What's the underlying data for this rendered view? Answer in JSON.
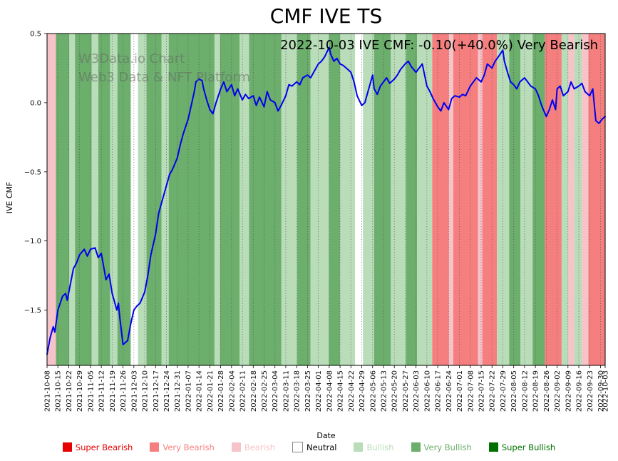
{
  "title": "CMF IVE TS",
  "annotation": "2022-10-03 IVE CMF: -0.10(+40.0%) Very Bearish",
  "watermark": {
    "line1": "W3Data.io Chart",
    "line2": "Web3 Data & NFT Platform"
  },
  "axes": {
    "x_label": "Date",
    "y_label": "IVE CMF"
  },
  "chart_data": {
    "type": "line",
    "title": "CMF IVE TS",
    "xlabel": "Date",
    "ylabel": "IVE CMF",
    "ylim": [
      -1.9,
      0.5
    ],
    "x_total_days": 360,
    "grid": "vertical-dotted",
    "legend_position": "bottom",
    "y_ticks": [
      0.5,
      0.0,
      -0.5,
      -1.0,
      -1.5
    ],
    "y_tick_labels": [
      "0.5",
      "0.0",
      "−0.5",
      "−1.0",
      "−1.5"
    ],
    "x_tick_labels": [
      "2021-10-08",
      "2021-10-15",
      "2021-10-22",
      "2021-10-29",
      "2021-11-05",
      "2021-11-12",
      "2021-11-19",
      "2021-11-26",
      "2021-12-03",
      "2021-12-10",
      "2021-12-17",
      "2021-12-24",
      "2021-12-31",
      "2022-01-07",
      "2022-01-14",
      "2022-01-21",
      "2022-01-28",
      "2022-02-04",
      "2022-02-11",
      "2022-02-18",
      "2022-02-25",
      "2022-03-04",
      "2022-03-11",
      "2022-03-18",
      "2022-03-25",
      "2022-04-01",
      "2022-04-08",
      "2022-04-15",
      "2022-04-22",
      "2022-04-29",
      "2022-05-06",
      "2022-05-13",
      "2022-05-20",
      "2022-05-27",
      "2022-06-03",
      "2022-06-10",
      "2022-06-17",
      "2022-06-24",
      "2022-07-01",
      "2022-07-08",
      "2022-07-15",
      "2022-07-22",
      "2022-07-29",
      "2022-08-05",
      "2022-08-12",
      "2022-08-19",
      "2022-08-26",
      "2022-09-02",
      "2022-09-09",
      "2022-09-16",
      "2022-09-23",
      "2022-09-30",
      "2022-10-03"
    ],
    "sentiment_colors": {
      "super_bearish": "#e60000",
      "very_bearish": "#f57f7f",
      "bearish": "#f6c3c9",
      "neutral": "#ffffff",
      "bullish": "#b9dcb9",
      "very_bullish": "#6cae6c",
      "super_bullish": "#007000"
    },
    "legend": [
      {
        "label": "Super Bearish",
        "key": "super_bearish"
      },
      {
        "label": "Very Bearish",
        "key": "very_bearish"
      },
      {
        "label": "Bearish",
        "key": "bearish"
      },
      {
        "label": "Neutral",
        "key": "neutral"
      },
      {
        "label": "Bullish",
        "key": "bullish"
      },
      {
        "label": "Very Bullish",
        "key": "very_bullish"
      },
      {
        "label": "Super Bullish",
        "key": "super_bullish"
      }
    ],
    "background_bands": [
      {
        "start": 0.0,
        "end": 0.016,
        "sentiment": "bearish"
      },
      {
        "start": 0.016,
        "end": 0.04,
        "sentiment": "very_bullish"
      },
      {
        "start": 0.04,
        "end": 0.05,
        "sentiment": "bullish"
      },
      {
        "start": 0.05,
        "end": 0.08,
        "sentiment": "very_bullish"
      },
      {
        "start": 0.08,
        "end": 0.092,
        "sentiment": "bullish"
      },
      {
        "start": 0.092,
        "end": 0.113,
        "sentiment": "very_bullish"
      },
      {
        "start": 0.113,
        "end": 0.126,
        "sentiment": "bullish"
      },
      {
        "start": 0.126,
        "end": 0.15,
        "sentiment": "very_bullish"
      },
      {
        "start": 0.15,
        "end": 0.163,
        "sentiment": "neutral"
      },
      {
        "start": 0.163,
        "end": 0.178,
        "sentiment": "bullish"
      },
      {
        "start": 0.178,
        "end": 0.205,
        "sentiment": "very_bullish"
      },
      {
        "start": 0.205,
        "end": 0.218,
        "sentiment": "bullish"
      },
      {
        "start": 0.218,
        "end": 0.3,
        "sentiment": "very_bullish"
      },
      {
        "start": 0.3,
        "end": 0.31,
        "sentiment": "bullish"
      },
      {
        "start": 0.31,
        "end": 0.345,
        "sentiment": "very_bullish"
      },
      {
        "start": 0.345,
        "end": 0.362,
        "sentiment": "bullish"
      },
      {
        "start": 0.362,
        "end": 0.42,
        "sentiment": "very_bullish"
      },
      {
        "start": 0.42,
        "end": 0.448,
        "sentiment": "bullish"
      },
      {
        "start": 0.448,
        "end": 0.472,
        "sentiment": "very_bullish"
      },
      {
        "start": 0.472,
        "end": 0.505,
        "sentiment": "bullish"
      },
      {
        "start": 0.505,
        "end": 0.525,
        "sentiment": "very_bullish"
      },
      {
        "start": 0.525,
        "end": 0.552,
        "sentiment": "bullish"
      },
      {
        "start": 0.552,
        "end": 0.566,
        "sentiment": "neutral"
      },
      {
        "start": 0.566,
        "end": 0.586,
        "sentiment": "bullish"
      },
      {
        "start": 0.586,
        "end": 0.616,
        "sentiment": "very_bullish"
      },
      {
        "start": 0.616,
        "end": 0.643,
        "sentiment": "bullish"
      },
      {
        "start": 0.643,
        "end": 0.663,
        "sentiment": "very_bullish"
      },
      {
        "start": 0.663,
        "end": 0.69,
        "sentiment": "bullish"
      },
      {
        "start": 0.69,
        "end": 0.72,
        "sentiment": "very_bearish"
      },
      {
        "start": 0.72,
        "end": 0.728,
        "sentiment": "bearish"
      },
      {
        "start": 0.728,
        "end": 0.772,
        "sentiment": "very_bearish"
      },
      {
        "start": 0.772,
        "end": 0.78,
        "sentiment": "bearish"
      },
      {
        "start": 0.78,
        "end": 0.806,
        "sentiment": "very_bearish"
      },
      {
        "start": 0.806,
        "end": 0.828,
        "sentiment": "bullish"
      },
      {
        "start": 0.828,
        "end": 0.848,
        "sentiment": "very_bullish"
      },
      {
        "start": 0.848,
        "end": 0.87,
        "sentiment": "bullish"
      },
      {
        "start": 0.87,
        "end": 0.892,
        "sentiment": "very_bullish"
      },
      {
        "start": 0.892,
        "end": 0.922,
        "sentiment": "very_bearish"
      },
      {
        "start": 0.922,
        "end": 0.934,
        "sentiment": "bullish"
      },
      {
        "start": 0.934,
        "end": 0.945,
        "sentiment": "bearish"
      },
      {
        "start": 0.945,
        "end": 0.958,
        "sentiment": "bullish"
      },
      {
        "start": 0.958,
        "end": 0.97,
        "sentiment": "bearish"
      },
      {
        "start": 0.97,
        "end": 1.0,
        "sentiment": "very_bearish"
      }
    ],
    "series": [
      {
        "name": "IVE CMF",
        "color": "#0000ee",
        "points": [
          [
            0,
            -1.82
          ],
          [
            2,
            -1.7
          ],
          [
            4,
            -1.62
          ],
          [
            5,
            -1.66
          ],
          [
            7,
            -1.5
          ],
          [
            10,
            -1.4
          ],
          [
            12,
            -1.38
          ],
          [
            13,
            -1.43
          ],
          [
            17,
            -1.2
          ],
          [
            19,
            -1.16
          ],
          [
            21,
            -1.1
          ],
          [
            24,
            -1.06
          ],
          [
            26,
            -1.11
          ],
          [
            28,
            -1.06
          ],
          [
            31,
            -1.05
          ],
          [
            33,
            -1.12
          ],
          [
            35,
            -1.09
          ],
          [
            38,
            -1.28
          ],
          [
            40,
            -1.24
          ],
          [
            42,
            -1.38
          ],
          [
            45,
            -1.5
          ],
          [
            46,
            -1.45
          ],
          [
            47,
            -1.56
          ],
          [
            49,
            -1.75
          ],
          [
            52,
            -1.72
          ],
          [
            54,
            -1.6
          ],
          [
            56,
            -1.5
          ],
          [
            58,
            -1.47
          ],
          [
            60,
            -1.45
          ],
          [
            63,
            -1.37
          ],
          [
            65,
            -1.25
          ],
          [
            67,
            -1.1
          ],
          [
            70,
            -0.95
          ],
          [
            72,
            -0.8
          ],
          [
            74,
            -0.72
          ],
          [
            77,
            -0.6
          ],
          [
            79,
            -0.52
          ],
          [
            81,
            -0.48
          ],
          [
            84,
            -0.4
          ],
          [
            86,
            -0.3
          ],
          [
            88,
            -0.22
          ],
          [
            91,
            -0.12
          ],
          [
            93,
            -0.02
          ],
          [
            95,
            0.08
          ],
          [
            96,
            0.15
          ],
          [
            98,
            0.17
          ],
          [
            100,
            0.16
          ],
          [
            101,
            0.1
          ],
          [
            103,
            0.02
          ],
          [
            105,
            -0.05
          ],
          [
            107,
            -0.08
          ],
          [
            109,
            0.0
          ],
          [
            112,
            0.1
          ],
          [
            114,
            0.15
          ],
          [
            116,
            0.08
          ],
          [
            119,
            0.13
          ],
          [
            121,
            0.05
          ],
          [
            123,
            0.1
          ],
          [
            126,
            0.02
          ],
          [
            128,
            0.06
          ],
          [
            130,
            0.03
          ],
          [
            133,
            0.05
          ],
          [
            135,
            -0.02
          ],
          [
            137,
            0.04
          ],
          [
            140,
            -0.03
          ],
          [
            142,
            0.08
          ],
          [
            144,
            0.02
          ],
          [
            147,
            0.0
          ],
          [
            149,
            -0.06
          ],
          [
            151,
            -0.02
          ],
          [
            154,
            0.05
          ],
          [
            156,
            0.13
          ],
          [
            158,
            0.12
          ],
          [
            161,
            0.15
          ],
          [
            163,
            0.13
          ],
          [
            165,
            0.18
          ],
          [
            168,
            0.2
          ],
          [
            170,
            0.18
          ],
          [
            172,
            0.22
          ],
          [
            175,
            0.28
          ],
          [
            177,
            0.3
          ],
          [
            179,
            0.33
          ],
          [
            182,
            0.4
          ],
          [
            183,
            0.35
          ],
          [
            185,
            0.3
          ],
          [
            187,
            0.32
          ],
          [
            189,
            0.28
          ],
          [
            191,
            0.27
          ],
          [
            193,
            0.25
          ],
          [
            196,
            0.22
          ],
          [
            198,
            0.15
          ],
          [
            200,
            0.05
          ],
          [
            203,
            -0.02
          ],
          [
            205,
            0.0
          ],
          [
            207,
            0.08
          ],
          [
            210,
            0.2
          ],
          [
            211,
            0.1
          ],
          [
            213,
            0.06
          ],
          [
            215,
            0.12
          ],
          [
            217,
            0.15
          ],
          [
            219,
            0.18
          ],
          [
            221,
            0.14
          ],
          [
            224,
            0.17
          ],
          [
            226,
            0.2
          ],
          [
            228,
            0.24
          ],
          [
            231,
            0.28
          ],
          [
            233,
            0.3
          ],
          [
            235,
            0.26
          ],
          [
            238,
            0.22
          ],
          [
            240,
            0.25
          ],
          [
            242,
            0.28
          ],
          [
            245,
            0.12
          ],
          [
            247,
            0.08
          ],
          [
            249,
            0.03
          ],
          [
            252,
            -0.03
          ],
          [
            254,
            -0.06
          ],
          [
            256,
            0.0
          ],
          [
            259,
            -0.05
          ],
          [
            261,
            0.03
          ],
          [
            263,
            0.05
          ],
          [
            266,
            0.04
          ],
          [
            268,
            0.06
          ],
          [
            270,
            0.05
          ],
          [
            273,
            0.12
          ],
          [
            275,
            0.15
          ],
          [
            277,
            0.18
          ],
          [
            280,
            0.15
          ],
          [
            282,
            0.2
          ],
          [
            284,
            0.28
          ],
          [
            287,
            0.25
          ],
          [
            289,
            0.3
          ],
          [
            291,
            0.33
          ],
          [
            294,
            0.38
          ],
          [
            295,
            0.3
          ],
          [
            297,
            0.22
          ],
          [
            299,
            0.15
          ],
          [
            301,
            0.13
          ],
          [
            303,
            0.1
          ],
          [
            305,
            0.15
          ],
          [
            308,
            0.18
          ],
          [
            310,
            0.15
          ],
          [
            312,
            0.12
          ],
          [
            315,
            0.1
          ],
          [
            317,
            0.05
          ],
          [
            319,
            -0.02
          ],
          [
            322,
            -0.1
          ],
          [
            324,
            -0.05
          ],
          [
            326,
            0.02
          ],
          [
            328,
            -0.05
          ],
          [
            329,
            0.1
          ],
          [
            331,
            0.12
          ],
          [
            333,
            0.05
          ],
          [
            336,
            0.08
          ],
          [
            338,
            0.15
          ],
          [
            340,
            0.1
          ],
          [
            343,
            0.12
          ],
          [
            345,
            0.14
          ],
          [
            347,
            0.08
          ],
          [
            350,
            0.05
          ],
          [
            352,
            0.1
          ],
          [
            354,
            -0.13
          ],
          [
            356,
            -0.15
          ],
          [
            358,
            -0.12
          ],
          [
            360,
            -0.1
          ]
        ]
      }
    ]
  }
}
